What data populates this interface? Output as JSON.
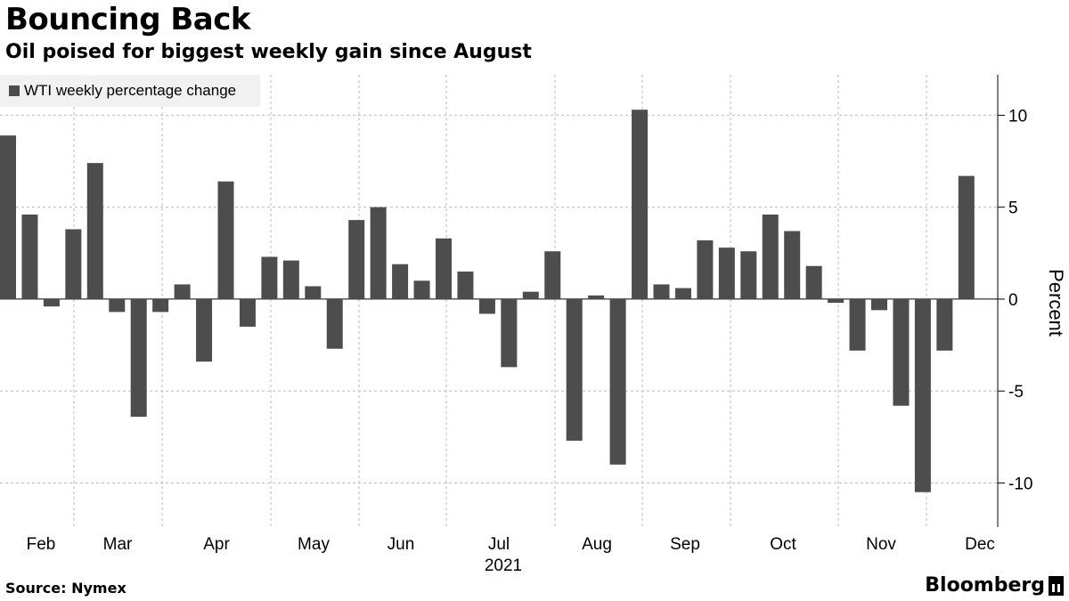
{
  "header": {
    "title": "Bouncing Back",
    "subtitle": "Oil poised for biggest weekly gain since August"
  },
  "legend": {
    "label": "WTI weekly percentage change"
  },
  "footer": {
    "source": "Source: Nymex",
    "brand": "Bloomberg"
  },
  "colors": {
    "bar": "#4d4d4d",
    "grid": "#bbbbbb",
    "axis": "#000000"
  },
  "chart_data": {
    "type": "bar",
    "title": "Bouncing Back",
    "subtitle": "Oil poised for biggest weekly gain since August",
    "series": [
      {
        "name": "WTI weekly percentage change",
        "values": [
          8.9,
          4.6,
          -0.4,
          3.8,
          7.4,
          -0.7,
          -6.4,
          -0.7,
          0.8,
          -3.4,
          6.4,
          -1.5,
          2.3,
          2.1,
          0.7,
          -2.7,
          4.3,
          5.0,
          1.9,
          1.0,
          3.3,
          1.5,
          -0.8,
          -3.7,
          0.4,
          2.6,
          -7.7,
          0.2,
          -9.0,
          10.3,
          0.8,
          0.6,
          3.2,
          2.8,
          2.6,
          4.6,
          3.7,
          1.8,
          -0.2,
          -2.8,
          -0.6,
          -5.8,
          -10.5,
          -2.8,
          6.7
        ]
      }
    ],
    "x_month_labels": [
      "Feb",
      "Mar",
      "Apr",
      "May",
      "Jun",
      "Jul",
      "Aug",
      "Sep",
      "Oct",
      "Nov",
      "Dec"
    ],
    "x_year_label": "2021",
    "ylabel": "Percent",
    "y_ticks": [
      10,
      5,
      0,
      -5,
      -10
    ],
    "ylim": [
      -12.4,
      12.2
    ],
    "grid": true,
    "legend_position": "top-left"
  }
}
